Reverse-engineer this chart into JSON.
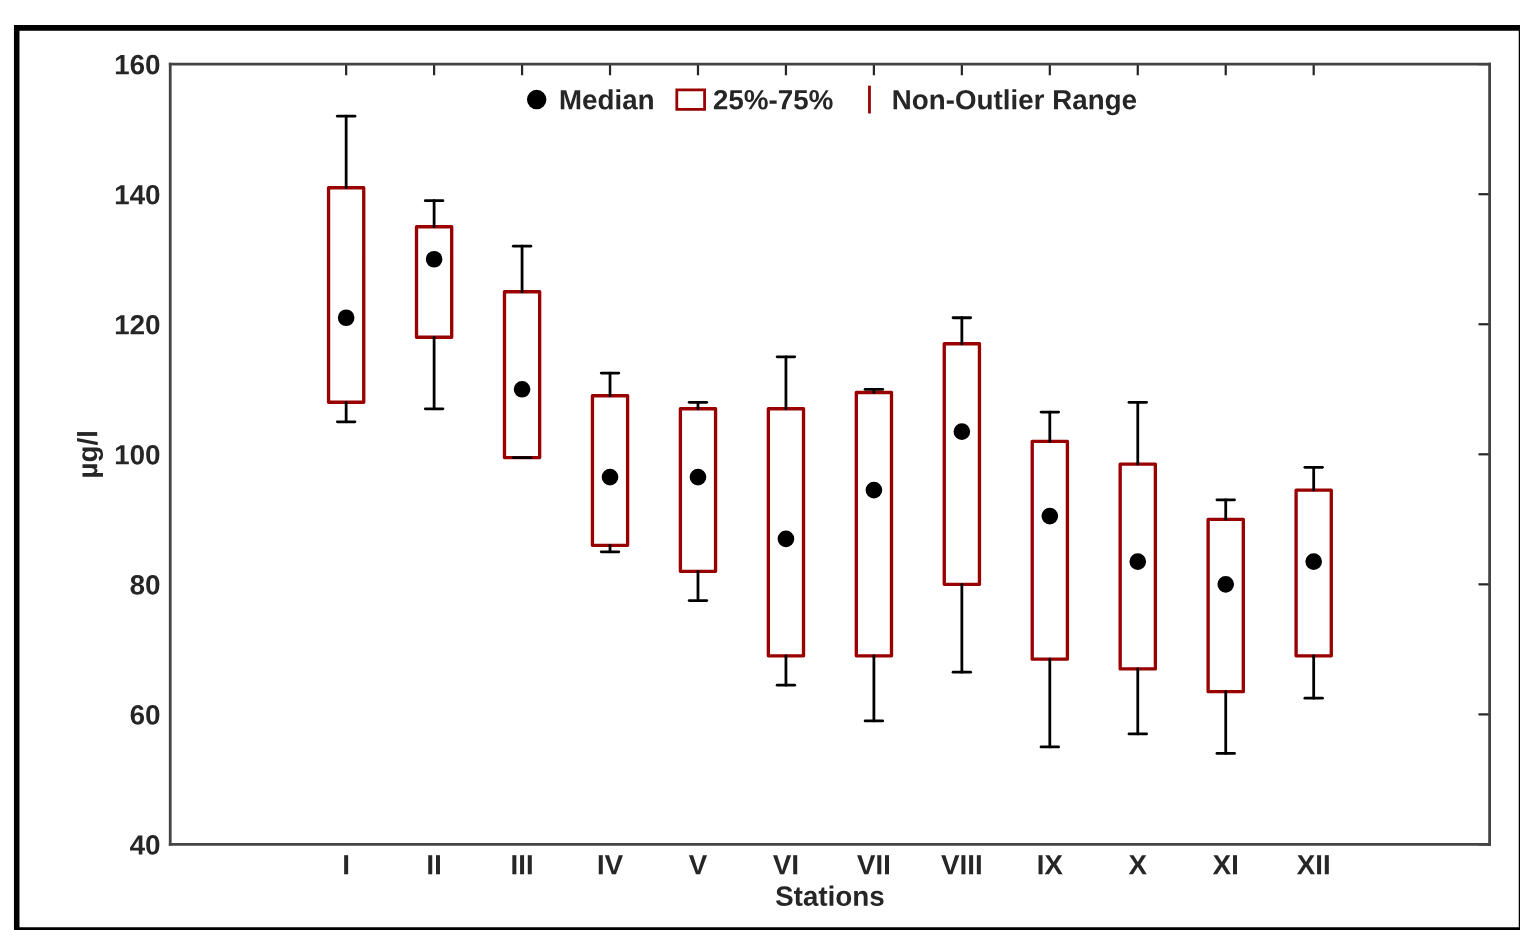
{
  "chart_data": {
    "type": "box",
    "xlabel": "Stations",
    "ylabel": "µg/l",
    "categories": [
      "I",
      "II",
      "III",
      "IV",
      "V",
      "VI",
      "VII",
      "VIII",
      "IX",
      "X",
      "XI",
      "XII"
    ],
    "series": [
      {
        "name": "25%-75%",
        "color": "#990000",
        "boxes": [
          {
            "low": 105,
            "q1": 108,
            "median": 121,
            "q3": 141,
            "high": 152
          },
          {
            "low": 107,
            "q1": 118,
            "median": 130,
            "q3": 135,
            "high": 139
          },
          {
            "low": 99.5,
            "q1": 99.5,
            "median": 110,
            "q3": 125,
            "high": 132
          },
          {
            "low": 85,
            "q1": 86,
            "median": 96.5,
            "q3": 109,
            "high": 112.5
          },
          {
            "low": 77.5,
            "q1": 82,
            "median": 96.5,
            "q3": 107,
            "high": 108
          },
          {
            "low": 64.5,
            "q1": 69,
            "median": 87,
            "q3": 107,
            "high": 115
          },
          {
            "low": 59,
            "q1": 69,
            "median": 94.5,
            "q3": 109.5,
            "high": 110
          },
          {
            "low": 66.5,
            "q1": 80,
            "median": 103.5,
            "q3": 117,
            "high": 121
          },
          {
            "low": 55,
            "q1": 68.5,
            "median": 90.5,
            "q3": 102,
            "high": 106.5
          },
          {
            "low": 57,
            "q1": 67,
            "median": 83.5,
            "q3": 98.5,
            "high": 108
          },
          {
            "low": 54,
            "q1": 63.5,
            "median": 80,
            "q3": 90,
            "high": 93
          },
          {
            "low": 62.5,
            "q1": 69,
            "median": 83.5,
            "q3": 94.5,
            "high": 98
          }
        ]
      }
    ],
    "annotations": [
      "Median",
      "Non-Outlier Range"
    ],
    "ylim": [
      40,
      160
    ],
    "yticks": [
      40,
      60,
      80,
      100,
      120,
      140,
      160
    ],
    "grid": false,
    "legend": "top",
    "marker": "circle"
  }
}
